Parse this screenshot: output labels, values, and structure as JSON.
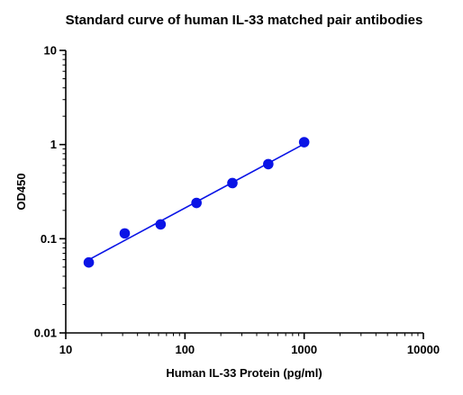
{
  "chart_data": {
    "type": "scatter",
    "title": "Standard curve of human IL-33 matched pair antibodies",
    "xlabel": "Human IL-33 Protein (pg/ml)",
    "ylabel": "OD450",
    "x_scale": "log",
    "y_scale": "log",
    "xlim": [
      10,
      10000
    ],
    "ylim": [
      0.01,
      10
    ],
    "x_ticks": [
      10,
      100,
      1000,
      10000
    ],
    "x_tick_labels": [
      "10",
      "100",
      "1000",
      "10000"
    ],
    "y_ticks": [
      0.01,
      0.1,
      1,
      10
    ],
    "y_tick_labels": [
      "0.01",
      "0.1",
      "1",
      "10"
    ],
    "grid": false,
    "legend": "none",
    "series": [
      {
        "color": "#0a14e6",
        "x": [
          15.6,
          31.25,
          62.5,
          125,
          250,
          500,
          1000
        ],
        "y": [
          0.056,
          0.114,
          0.142,
          0.24,
          0.39,
          0.62,
          1.06
        ],
        "fit_line": true
      }
    ]
  }
}
